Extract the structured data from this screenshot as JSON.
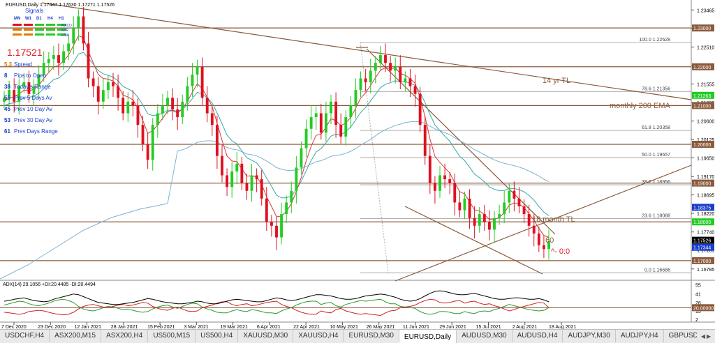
{
  "header": {
    "symbol_info": "EURUSD,Daily  1.17447 1.17630 1.17271 1.17526",
    "signals_title": "Signals",
    "timeframes": [
      "MN",
      "W1",
      "D1",
      "H4",
      "H1"
    ],
    "signal_rows": [
      "MACD",
      "STR",
      "EMA"
    ]
  },
  "info_panel": {
    "price": "1.17521",
    "rows": [
      {
        "num": "5.3",
        "label": "Spread",
        "color": "#e07b00"
      },
      {
        "num": "8",
        "label": "Pips to Open",
        "color": "#1a3ccc"
      },
      {
        "num": "38",
        "label": "Today's Range",
        "color": "#1a3ccc"
      },
      {
        "num": "55",
        "label": "Prev 5 Days Av",
        "color": "#1a3ccc"
      },
      {
        "num": "45",
        "label": "Prev 10 Day Av",
        "color": "#1a3ccc"
      },
      {
        "num": "53",
        "label": "Prev 30 Day Av",
        "color": "#1a3ccc"
      },
      {
        "num": "61",
        "label": "Prev Days Range",
        "color": "#1a3ccc"
      }
    ]
  },
  "annotations": {
    "tl14": "14 yr TL",
    "ema200": "monthly 200 EMA",
    "tl18": "18 month TL",
    "sixty": "60",
    "zero": "^- 0:0"
  },
  "indicator_title": "ADX(14) 29.1056 +DI:20.4485 -DI:20.4494",
  "tabs": [
    "USDCHF,H4",
    "ASX200,M15",
    "ASX200,H4",
    "US500,M15",
    "US500,H4",
    "XAUUSD,M30",
    "XAUUSD,H4",
    "EURUSD,M30",
    "EURUSD,Daily",
    "AUDUSD,M30",
    "AUDUSD,H4",
    "AUDJPY,M30",
    "AUDJPY,H4",
    "GBPUSD,M30",
    "GBPUSD,H4",
    "NZDUSD,M30",
    "NZDUSD,H4"
  ],
  "active_tab": "EURUSD,Daily",
  "colors": {
    "bull": "#22cc22",
    "bear": "#e01020",
    "level": "#8b5a3c",
    "ema_slow": "#7bb3d1",
    "ema_fast": "#d63a3a",
    "ema_mid": "#3aa8a8"
  },
  "chart_data": {
    "type": "candlestick",
    "symbol": "EURUSD",
    "timeframe": "Daily",
    "ylim": [
      1.1653,
      1.2365
    ],
    "y_ticks": [
      1.23465,
      1.2299,
      1.2251,
      1.2203,
      1.21555,
      1.2108,
      1.206,
      1.20125,
      1.1965,
      1.1917,
      1.18695,
      1.1822,
      1.1774,
      1.17265,
      1.16785
    ],
    "x_ticks": [
      "7 Dec 2020",
      "23 Dec 2020",
      "12 Jan 2021",
      "28 Jan 2021",
      "15 Feb 2021",
      "3 Mar 2021",
      "19 Mar 2021",
      "6 Apr 2021",
      "22 Apr 2021",
      "10 May 2021",
      "26 May 2021",
      "11 Jun 2021",
      "29 Jun 2021",
      "15 Jul 2021",
      "2 Aug 2021",
      "18 Aug 2021"
    ],
    "horizontal_levels": [
      1.23,
      1.22,
      1.21,
      1.2,
      1.19,
      1.18,
      1.17
    ],
    "price_boxes": [
      {
        "value": "1.23000",
        "color": "#8b5a3c"
      },
      {
        "value": "1.22000",
        "color": "#8b5a3c"
      },
      {
        "value": "1.21263",
        "color": "#22cc22"
      },
      {
        "value": "1.21000",
        "color": "#8b5a3c"
      },
      {
        "value": "1.20000",
        "color": "#8b5a3c"
      },
      {
        "value": "1.19000",
        "color": "#8b5a3c"
      },
      {
        "value": "1.18375",
        "color": "#1a3ccc"
      },
      {
        "value": "1.18000",
        "color": "#22cc22"
      },
      {
        "value": "1.17526",
        "color": "#000000"
      },
      {
        "value": "1.17344",
        "color": "#1a3ccc"
      },
      {
        "value": "1.17000",
        "color": "#8b5a3c"
      }
    ],
    "fibonacci": [
      {
        "label": "100.0  1.22628",
        "price": 1.22628
      },
      {
        "label": "78.6  1.21356",
        "price": 1.21356
      },
      {
        "label": "61.8  1.20358",
        "price": 1.20358
      },
      {
        "label": "50.0  1.19657",
        "price": 1.19657
      },
      {
        "label": "38.2  1.18956",
        "price": 1.18956
      },
      {
        "label": "23.6  1.18088",
        "price": 1.18088
      },
      {
        "label": "0.0  1.16686",
        "price": 1.16686
      }
    ],
    "closes": [
      1.212,
      1.214,
      1.211,
      1.215,
      1.216,
      1.213,
      1.215,
      1.218,
      1.221,
      1.222,
      1.223,
      1.221,
      1.224,
      1.226,
      1.23,
      1.233,
      1.226,
      1.217,
      1.215,
      1.211,
      1.214,
      1.216,
      1.215,
      1.212,
      1.208,
      1.211,
      1.21,
      1.205,
      1.2,
      1.196,
      1.205,
      1.208,
      1.21,
      1.212,
      1.209,
      1.207,
      1.211,
      1.215,
      1.218,
      1.22,
      1.212,
      1.208,
      1.205,
      1.197,
      1.192,
      1.189,
      1.193,
      1.195,
      1.19,
      1.188,
      1.192,
      1.191,
      1.186,
      1.18,
      1.179,
      1.176,
      1.182,
      1.185,
      1.188,
      1.194,
      1.199,
      1.204,
      1.207,
      1.208,
      1.203,
      1.208,
      1.211,
      1.205,
      1.202,
      1.207,
      1.21,
      1.214,
      1.217,
      1.216,
      1.219,
      1.221,
      1.223,
      1.221,
      1.219,
      1.22,
      1.216,
      1.217,
      1.215,
      1.213,
      1.205,
      1.197,
      1.19,
      1.188,
      1.192,
      1.191,
      1.19,
      1.185,
      1.183,
      1.186,
      1.181,
      1.179,
      1.182,
      1.18,
      1.178,
      1.181,
      1.182,
      1.185,
      1.188,
      1.186,
      1.184,
      1.182,
      1.179,
      1.177,
      1.174,
      1.173,
      1.175
    ],
    "ema_fast": [
      1.211,
      1.212,
      1.2122,
      1.213,
      1.214,
      1.2138,
      1.2142,
      1.2152,
      1.217,
      1.2185,
      1.22,
      1.2203,
      1.2215,
      1.223,
      1.2255,
      1.228,
      1.2275,
      1.224,
      1.221,
      1.218,
      1.217,
      1.2168,
      1.2163,
      1.215,
      1.2127,
      1.2122,
      1.2115,
      1.2093,
      1.2062,
      1.2028,
      1.2035,
      1.205,
      1.2067,
      1.2085,
      1.2087,
      1.2081,
      1.2091,
      1.2111,
      1.2134,
      1.2156,
      1.2144,
      1.2122,
      1.2098,
      1.2055,
      1.201,
      1.197,
      1.1957,
      1.1955,
      1.1937,
      1.1918,
      1.1919,
      1.1916,
      1.1897,
      1.1865,
      1.184,
      1.1813,
      1.1815,
      1.1827,
      1.1847,
      1.1878,
      1.1915,
      1.1957,
      1.1995,
      1.2023,
      1.2026,
      1.2044,
      1.2066,
      1.2061,
      1.2048,
      1.2055,
      1.207,
      1.2093,
      1.2119,
      1.2133,
      1.2152,
      1.2172,
      1.2191,
      1.2198,
      1.2195,
      1.2197,
      1.2183,
      1.2178,
      1.2169,
      1.2157,
      1.2121,
      1.2071,
      1.2014,
      1.1969,
      1.1953,
      1.1939,
      1.1926,
      1.1901,
      1.1878,
      1.1872,
      1.1852,
      1.1831,
      1.1828,
      1.1819,
      1.1806,
      1.1807,
      1.1811,
      1.1824,
      1.1843,
      1.1849,
      1.1846,
      1.1837,
      1.1821,
      1.1804,
      1.1783,
      1.1765,
      1.176
    ],
    "ema_mid": [
      1.21,
      1.2105,
      1.2107,
      1.2113,
      1.212,
      1.2121,
      1.2124,
      1.2132,
      1.2144,
      1.2155,
      1.2167,
      1.2171,
      1.2181,
      1.2193,
      1.2212,
      1.2233,
      1.2237,
      1.2222,
      1.2207,
      1.219,
      1.2182,
      1.2178,
      1.2173,
      1.2164,
      1.2149,
      1.2143,
      1.2136,
      1.2121,
      1.2102,
      1.2079,
      1.2074,
      1.2076,
      1.208,
      1.2088,
      1.2088,
      1.2085,
      1.209,
      1.2102,
      1.2118,
      1.2134,
      1.213,
      1.212,
      1.2107,
      1.2081,
      1.2053,
      1.2024,
      1.2009,
      1.2001,
      1.1983,
      1.1965,
      1.1959,
      1.1952,
      1.1936,
      1.1913,
      1.1892,
      1.1869,
      1.1862,
      1.1862,
      1.1867,
      1.1883,
      1.1905,
      1.1932,
      1.1958,
      1.198,
      1.1989,
      1.2004,
      1.2021,
      1.2026,
      1.2025,
      1.2033,
      1.2045,
      1.2063,
      1.2082,
      1.2095,
      1.2112,
      1.2129,
      1.2146,
      1.2155,
      1.2159,
      1.2164,
      1.2161,
      1.2161,
      1.2158,
      1.2152,
      1.2134,
      1.2108,
      1.2077,
      1.205,
      1.2035,
      1.2021,
      1.2008,
      1.1988,
      1.1969,
      1.1958,
      1.1941,
      1.1923,
      1.1914,
      1.1903,
      1.189,
      1.1884,
      1.188,
      1.1881,
      1.1886,
      1.1886,
      1.1883,
      1.1878,
      1.1868,
      1.1856,
      1.184,
      1.1825,
      1.1816
    ],
    "ema_slow": [
      1.178,
      1.179,
      1.1798,
      1.1808,
      1.1818,
      1.1826,
      1.1834,
      1.1844,
      1.1855,
      1.1866,
      1.1877,
      1.1886,
      1.1897,
      1.1908,
      1.1921,
      1.1936,
      1.1945,
      1.195,
      1.1954,
      1.1957,
      1.1961,
      1.1965,
      1.1969,
      1.1972,
      1.1973,
      1.1975,
      1.1977,
      1.1976,
      1.1974,
      1.197,
      1.1971,
      1.1973,
      1.1976,
      1.198,
      1.1982,
      1.1983,
      1.1986,
      1.1991,
      1.1998,
      1.2005,
      1.2008,
      1.2009,
      1.2009,
      1.2005,
      1.1999,
      1.1992,
      1.1988,
      1.1986,
      1.1981,
      1.1975,
      1.1973,
      1.197,
      1.1964,
      1.1957,
      1.1949,
      1.194,
      1.1936,
      1.1933,
      1.1932,
      1.1934,
      1.1937,
      1.1943,
      1.1949,
      1.1955,
      1.1958,
      1.1963,
      1.1969,
      1.1972,
      1.1973,
      1.1977,
      1.1982,
      1.1989,
      1.1998,
      1.2005,
      1.2013,
      1.2022,
      1.2031,
      1.2038,
      1.2043,
      1.2049,
      1.2052,
      1.2056,
      1.2058,
      1.2059,
      1.2058,
      1.2054,
      1.2047,
      1.204,
      1.2035,
      1.203,
      1.2025,
      1.2017,
      1.2009,
      1.2003,
      1.1995,
      1.1986,
      1.198,
      1.1973,
      1.1966,
      1.196,
      1.1955,
      1.1951,
      1.1948,
      1.1945,
      1.1941,
      1.1937,
      1.1931,
      1.1925,
      1.1918,
      1.191,
      1.1904
    ],
    "indicator": {
      "name": "ADX(14)",
      "y_ticks": [
        55,
        41,
        28,
        15,
        2
      ],
      "levels": [
        20.0
      ],
      "level_boxes": [
        "20.00000"
      ],
      "adx": [
        30,
        31,
        33,
        34,
        35,
        33,
        31,
        30,
        29,
        30,
        33,
        35,
        37,
        39,
        41,
        40,
        37,
        34,
        31,
        28,
        27,
        26,
        25,
        25,
        26,
        27,
        28,
        30,
        32,
        34,
        33,
        31,
        29,
        28,
        27,
        26,
        26,
        27,
        28,
        30,
        29,
        27,
        26,
        26,
        28,
        30,
        32,
        33,
        32,
        31,
        30,
        29,
        29,
        31,
        33,
        35,
        34,
        32,
        31,
        32,
        34,
        36,
        38,
        40,
        40,
        39,
        38,
        36,
        34,
        33,
        33,
        34,
        36,
        38,
        39,
        40,
        41,
        40,
        38,
        36,
        33,
        31,
        30,
        31,
        34,
        38,
        42,
        45,
        46,
        45,
        43,
        41,
        40,
        40,
        41,
        42,
        40,
        38,
        36,
        34,
        33,
        33,
        34,
        35,
        35,
        34,
        33,
        33,
        34,
        32,
        29
      ],
      "plus_di": [
        24,
        26,
        28,
        30,
        29,
        26,
        24,
        23,
        25,
        27,
        30,
        32,
        33,
        31,
        28,
        22,
        18,
        16,
        15,
        17,
        20,
        22,
        21,
        19,
        17,
        18,
        16,
        14,
        13,
        14,
        18,
        21,
        23,
        24,
        21,
        19,
        22,
        25,
        27,
        26,
        21,
        18,
        16,
        13,
        12,
        12,
        15,
        17,
        15,
        14,
        17,
        16,
        14,
        12,
        12,
        11,
        15,
        18,
        20,
        24,
        27,
        29,
        30,
        30,
        25,
        27,
        28,
        23,
        21,
        25,
        27,
        29,
        31,
        30,
        31,
        32,
        33,
        29,
        26,
        26,
        22,
        21,
        20,
        19,
        14,
        11,
        10,
        11,
        14,
        14,
        13,
        11,
        11,
        14,
        12,
        11,
        14,
        15,
        14,
        17,
        19,
        22,
        25,
        23,
        21,
        19,
        17,
        16,
        15,
        16,
        20
      ],
      "minus_di": [
        13,
        12,
        11,
        10,
        11,
        14,
        15,
        16,
        15,
        13,
        11,
        10,
        9,
        10,
        13,
        18,
        22,
        24,
        25,
        23,
        21,
        20,
        22,
        24,
        25,
        23,
        24,
        26,
        28,
        27,
        22,
        19,
        17,
        16,
        19,
        21,
        18,
        15,
        14,
        15,
        20,
        22,
        24,
        27,
        29,
        29,
        25,
        23,
        25,
        26,
        23,
        24,
        26,
        28,
        29,
        30,
        25,
        22,
        20,
        16,
        13,
        11,
        10,
        10,
        15,
        13,
        12,
        17,
        19,
        15,
        13,
        11,
        10,
        11,
        10,
        9,
        8,
        12,
        15,
        16,
        20,
        21,
        22,
        24,
        28,
        31,
        33,
        32,
        28,
        27,
        28,
        30,
        31,
        27,
        29,
        30,
        27,
        25,
        26,
        23,
        21,
        18,
        15,
        17,
        20,
        22,
        24,
        26,
        28,
        27,
        20
      ]
    }
  }
}
